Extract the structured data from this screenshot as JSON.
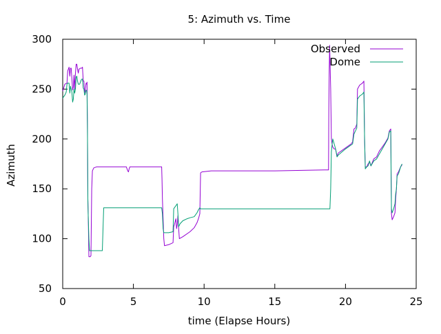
{
  "chart_data": {
    "type": "line",
    "title": "5: Azimuth vs. Time",
    "xlabel": "time (Elapse Hours)",
    "ylabel": "Azimuth",
    "xlim": [
      0,
      25
    ],
    "ylim": [
      50,
      300
    ],
    "xticks": [
      0,
      5,
      10,
      15,
      20,
      25
    ],
    "yticks": [
      50,
      100,
      150,
      200,
      250,
      300
    ],
    "grid": false,
    "legend_position": "top-right",
    "series": [
      {
        "name": "Observed",
        "color": "#9400d3",
        "points": [
          [
            0,
            248
          ],
          [
            0.15,
            255
          ],
          [
            0.3,
            256
          ],
          [
            0.35,
            268
          ],
          [
            0.45,
            272
          ],
          [
            0.5,
            263
          ],
          [
            0.55,
            271
          ],
          [
            0.6,
            271
          ],
          [
            0.7,
            249
          ],
          [
            0.75,
            252
          ],
          [
            0.8,
            264
          ],
          [
            0.85,
            250
          ],
          [
            0.9,
            266
          ],
          [
            0.95,
            275
          ],
          [
            1.0,
            275
          ],
          [
            1.05,
            270
          ],
          [
            1.1,
            266
          ],
          [
            1.15,
            270
          ],
          [
            1.25,
            271
          ],
          [
            1.35,
            271
          ],
          [
            1.4,
            272
          ],
          [
            1.45,
            258
          ],
          [
            1.5,
            258
          ],
          [
            1.55,
            246
          ],
          [
            1.6,
            249
          ],
          [
            1.65,
            256
          ],
          [
            1.7,
            255
          ],
          [
            1.72,
            257
          ],
          [
            1.75,
            210
          ],
          [
            1.78,
            140
          ],
          [
            1.8,
            128
          ],
          [
            1.85,
            82
          ],
          [
            1.95,
            82
          ],
          [
            2.0,
            83
          ],
          [
            2.05,
            150
          ],
          [
            2.1,
            168
          ],
          [
            2.2,
            171
          ],
          [
            2.4,
            172
          ],
          [
            3.0,
            172
          ],
          [
            4.5,
            172
          ],
          [
            4.6,
            168
          ],
          [
            4.65,
            167
          ],
          [
            4.7,
            170
          ],
          [
            4.75,
            172
          ],
          [
            6.5,
            172
          ],
          [
            6.9,
            172
          ],
          [
            7.0,
            172
          ],
          [
            7.02,
            160
          ],
          [
            7.05,
            140
          ],
          [
            7.1,
            120
          ],
          [
            7.15,
            100
          ],
          [
            7.2,
            93
          ],
          [
            7.5,
            94
          ],
          [
            7.8,
            96
          ],
          [
            7.85,
            112
          ],
          [
            7.9,
            114
          ],
          [
            8.0,
            120
          ],
          [
            8.05,
            110
          ],
          [
            8.1,
            114
          ],
          [
            8.15,
            123
          ],
          [
            8.2,
            110
          ],
          [
            8.25,
            100
          ],
          [
            8.5,
            102
          ],
          [
            9.0,
            107
          ],
          [
            9.3,
            111
          ],
          [
            9.5,
            116
          ],
          [
            9.6,
            120
          ],
          [
            9.7,
            125
          ],
          [
            9.75,
            166
          ],
          [
            9.85,
            167
          ],
          [
            10.5,
            168
          ],
          [
            15,
            168
          ],
          [
            18.5,
            169
          ],
          [
            18.8,
            169
          ],
          [
            18.82,
            230
          ],
          [
            18.85,
            270
          ],
          [
            18.88,
            294
          ],
          [
            18.9,
            282
          ],
          [
            18.95,
            250
          ],
          [
            19.0,
            200
          ],
          [
            19.05,
            195
          ],
          [
            19.1,
            192
          ],
          [
            19.2,
            190
          ],
          [
            19.3,
            190
          ],
          [
            19.4,
            183
          ],
          [
            19.5,
            186
          ],
          [
            20.0,
            191
          ],
          [
            20.4,
            195
          ],
          [
            20.5,
            197
          ],
          [
            20.6,
            210
          ],
          [
            20.7,
            211
          ],
          [
            20.8,
            215
          ],
          [
            20.85,
            250
          ],
          [
            21.0,
            254
          ],
          [
            21.2,
            256
          ],
          [
            21.3,
            258
          ],
          [
            21.35,
            200
          ],
          [
            21.4,
            172
          ],
          [
            21.5,
            172
          ],
          [
            21.6,
            175
          ],
          [
            21.7,
            177
          ],
          [
            21.8,
            173
          ],
          [
            22.0,
            180
          ],
          [
            22.2,
            182
          ],
          [
            22.4,
            188
          ],
          [
            22.6,
            192
          ],
          [
            22.8,
            196
          ],
          [
            23.0,
            201
          ],
          [
            23.1,
            208
          ],
          [
            23.2,
            210
          ],
          [
            23.22,
            175
          ],
          [
            23.25,
            125
          ],
          [
            23.3,
            119
          ],
          [
            23.4,
            122
          ],
          [
            23.5,
            126
          ],
          [
            23.55,
            140
          ],
          [
            23.6,
            150
          ],
          [
            23.65,
            165
          ],
          [
            23.75,
            167
          ],
          [
            23.9,
            172
          ],
          [
            24.0,
            174
          ]
        ]
      },
      {
        "name": "Dome",
        "color": "#009e73",
        "points": [
          [
            0,
            241
          ],
          [
            0.15,
            244
          ],
          [
            0.25,
            247
          ],
          [
            0.3,
            255
          ],
          [
            0.35,
            256
          ],
          [
            0.45,
            256
          ],
          [
            0.5,
            246
          ],
          [
            0.55,
            253
          ],
          [
            0.6,
            250
          ],
          [
            0.65,
            247
          ],
          [
            0.7,
            237
          ],
          [
            0.75,
            240
          ],
          [
            0.8,
            250
          ],
          [
            0.85,
            246
          ],
          [
            0.9,
            250
          ],
          [
            0.95,
            262
          ],
          [
            1.0,
            263
          ],
          [
            1.05,
            258
          ],
          [
            1.1,
            255
          ],
          [
            1.2,
            255
          ],
          [
            1.3,
            259
          ],
          [
            1.35,
            260
          ],
          [
            1.4,
            260
          ],
          [
            1.45,
            251
          ],
          [
            1.5,
            250
          ],
          [
            1.55,
            244
          ],
          [
            1.6,
            245
          ],
          [
            1.65,
            249
          ],
          [
            1.7,
            248
          ],
          [
            1.72,
            245
          ],
          [
            1.75,
            214
          ],
          [
            1.78,
            140
          ],
          [
            1.8,
            126
          ],
          [
            1.85,
            100
          ],
          [
            1.9,
            88
          ],
          [
            2.0,
            88
          ],
          [
            2.8,
            88
          ],
          [
            2.85,
            110
          ],
          [
            2.9,
            131
          ],
          [
            3.0,
            131
          ],
          [
            5.0,
            131
          ],
          [
            7.0,
            131
          ],
          [
            7.05,
            125
          ],
          [
            7.1,
            110
          ],
          [
            7.15,
            106
          ],
          [
            7.5,
            106
          ],
          [
            7.8,
            107
          ],
          [
            7.85,
            130
          ],
          [
            7.9,
            131
          ],
          [
            8.0,
            133
          ],
          [
            8.1,
            135
          ],
          [
            8.15,
            125
          ],
          [
            8.2,
            112
          ],
          [
            8.3,
            115
          ],
          [
            8.5,
            118
          ],
          [
            8.8,
            120
          ],
          [
            9.0,
            121
          ],
          [
            9.3,
            122
          ],
          [
            9.5,
            126
          ],
          [
            9.6,
            129
          ],
          [
            9.7,
            131
          ],
          [
            9.75,
            130
          ],
          [
            10.0,
            130
          ],
          [
            15,
            130
          ],
          [
            18.5,
            130
          ],
          [
            18.9,
            130
          ],
          [
            18.95,
            150
          ],
          [
            19.0,
            187
          ],
          [
            19.05,
            194
          ],
          [
            19.1,
            200
          ],
          [
            19.2,
            195
          ],
          [
            19.3,
            190
          ],
          [
            19.4,
            182
          ],
          [
            19.5,
            184
          ],
          [
            20.0,
            190
          ],
          [
            20.4,
            194
          ],
          [
            20.5,
            195
          ],
          [
            20.6,
            205
          ],
          [
            20.7,
            208
          ],
          [
            20.8,
            211
          ],
          [
            20.85,
            240
          ],
          [
            21.0,
            243
          ],
          [
            21.2,
            245
          ],
          [
            21.3,
            247
          ],
          [
            21.35,
            200
          ],
          [
            21.4,
            170
          ],
          [
            21.5,
            172
          ],
          [
            21.6,
            173
          ],
          [
            21.7,
            178
          ],
          [
            21.8,
            173
          ],
          [
            22.0,
            178
          ],
          [
            22.2,
            180
          ],
          [
            22.4,
            185
          ],
          [
            22.6,
            190
          ],
          [
            22.8,
            195
          ],
          [
            23.0,
            200
          ],
          [
            23.1,
            207
          ],
          [
            23.2,
            208
          ],
          [
            23.22,
            170
          ],
          [
            23.25,
            130
          ],
          [
            23.3,
            126
          ],
          [
            23.4,
            130
          ],
          [
            23.5,
            135
          ],
          [
            23.55,
            145
          ],
          [
            23.6,
            150
          ],
          [
            23.65,
            163
          ],
          [
            23.75,
            165
          ],
          [
            23.9,
            172
          ],
          [
            24.0,
            175
          ]
        ]
      }
    ]
  }
}
